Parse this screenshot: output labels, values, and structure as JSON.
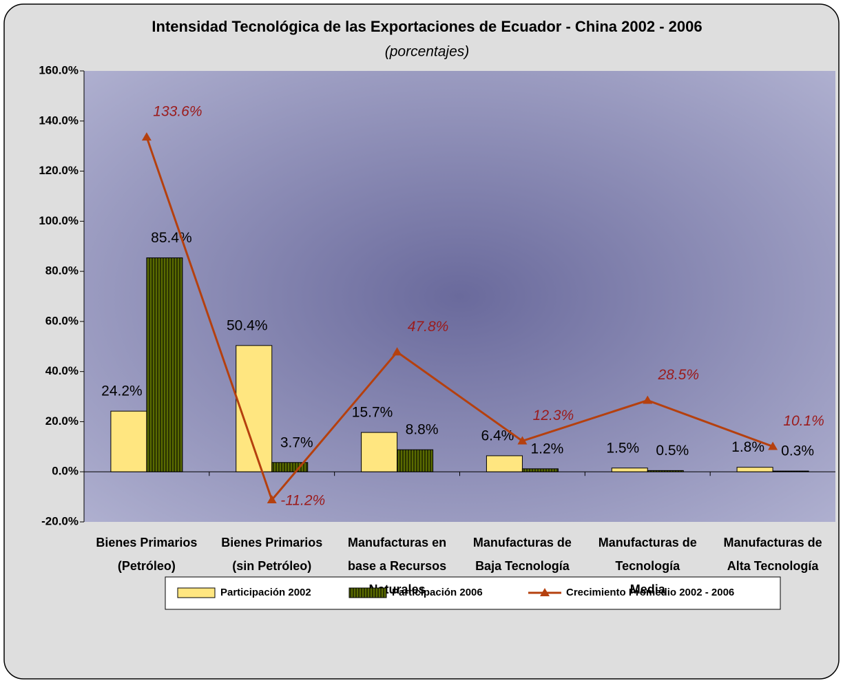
{
  "chart_data": {
    "type": "bar",
    "title": "Intensidad Tecnológica de las Exportaciones de Ecuador - China 2002 - 2006",
    "subtitle": "(porcentajes)",
    "categories": [
      [
        "Bienes Primarios",
        "(Petróleo)"
      ],
      [
        "Bienes Primarios",
        "(sin Petróleo)"
      ],
      [
        "Manufacturas en",
        "base a Recursos",
        "Naturales"
      ],
      [
        "Manufacturas de",
        "Baja Tecnología"
      ],
      [
        "Manufacturas de",
        "Tecnología",
        "Media"
      ],
      [
        "Manufacturas de",
        "Alta Tecnología"
      ]
    ],
    "series": [
      {
        "name": "Participación 2002",
        "type": "bar",
        "color": "#ffe680",
        "values": [
          24.2,
          50.4,
          15.7,
          6.4,
          1.5,
          1.8
        ],
        "value_labels": [
          "24.2%",
          "50.4%",
          "15.7%",
          "6.4%",
          "1.5%",
          "1.8%"
        ]
      },
      {
        "name": "Participación 2006",
        "type": "bar",
        "color": "#5a6b00",
        "values": [
          85.4,
          3.7,
          8.8,
          1.2,
          0.5,
          0.3
        ],
        "value_labels": [
          "85.4%",
          "3.7%",
          "8.8%",
          "1.2%",
          "0.5%",
          "0.3%"
        ]
      },
      {
        "name": "Crecimiento Promedio 2002 - 2006",
        "type": "line",
        "color": "#b5400e",
        "values": [
          133.6,
          -11.2,
          47.8,
          12.3,
          28.5,
          10.1
        ],
        "value_labels": [
          "133.6%",
          "-11.2%",
          "47.8%",
          "12.3%",
          "28.5%",
          "10.1%"
        ]
      }
    ],
    "ylim": [
      -20,
      160
    ],
    "yticks": [
      {
        "value": -20,
        "label": "-20.0%"
      },
      {
        "value": 0,
        "label": "0.0%"
      },
      {
        "value": 20,
        "label": "20.0%"
      },
      {
        "value": 40,
        "label": "40.0%"
      },
      {
        "value": 60,
        "label": "60.0%"
      },
      {
        "value": 80,
        "label": "80.0%"
      },
      {
        "value": 100,
        "label": "100.0%"
      },
      {
        "value": 120,
        "label": "120.0%"
      },
      {
        "value": 140,
        "label": "140.0%"
      },
      {
        "value": 160,
        "label": "160.0%"
      }
    ],
    "legend": "bottom"
  }
}
